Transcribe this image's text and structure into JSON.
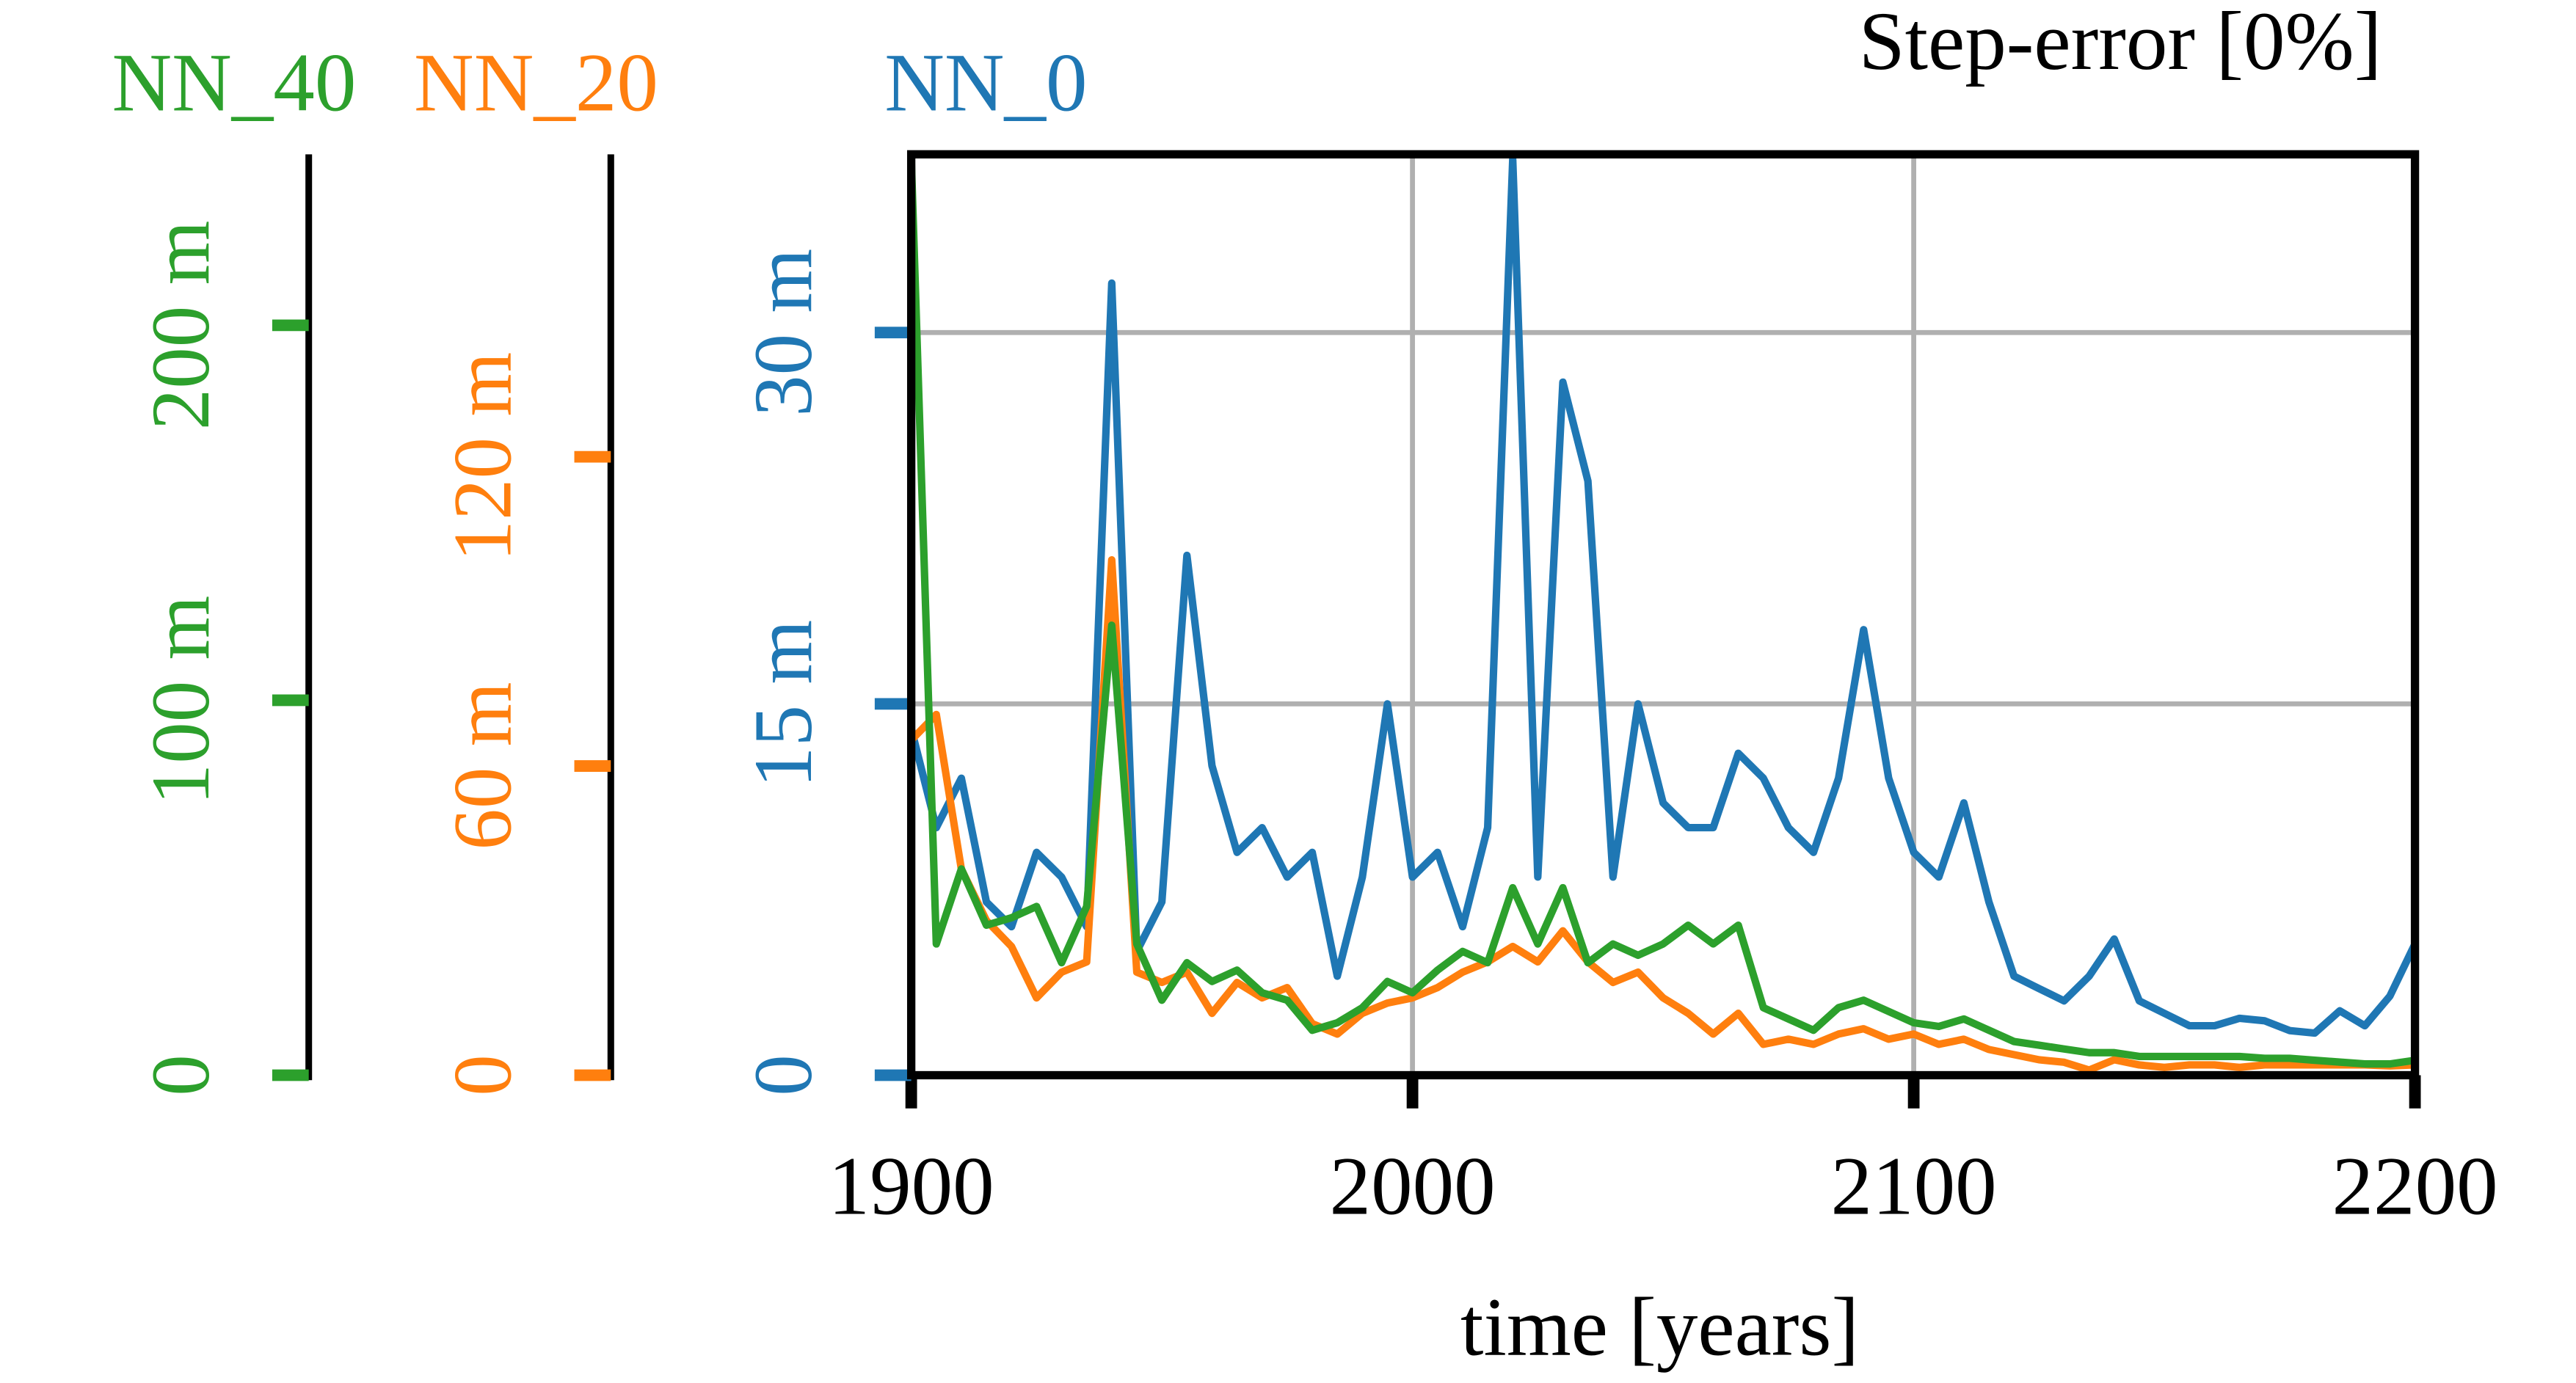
{
  "chart_data": {
    "type": "line",
    "title": "Step-error [0%]",
    "x_label": "time [years]",
    "x": [
      1900,
      1905,
      1910,
      1915,
      1920,
      1925,
      1930,
      1935,
      1940,
      1945,
      1950,
      1955,
      1960,
      1965,
      1970,
      1975,
      1980,
      1985,
      1990,
      1995,
      2000,
      2005,
      2010,
      2015,
      2020,
      2025,
      2030,
      2035,
      2040,
      2045,
      2050,
      2055,
      2060,
      2065,
      2070,
      2075,
      2080,
      2085,
      2090,
      2095,
      2100,
      2105,
      2110,
      2115,
      2120,
      2125,
      2130,
      2135,
      2140,
      2145,
      2150,
      2155,
      2160,
      2165,
      2170,
      2175,
      2180,
      2185,
      2190,
      2195,
      2200
    ],
    "xlim": [
      1900,
      2200
    ],
    "xticks": [
      1900,
      2000,
      2100,
      2200
    ],
    "grid": true,
    "series": [
      {
        "name": "NN_0",
        "color": "#1f77b4",
        "ylim": [
          0,
          37.2
        ],
        "yticks": [
          0,
          {
            "value": 15,
            "label": "15 m"
          },
          {
            "value": 30,
            "label": "30 m"
          }
        ],
        "values": [
          14,
          10,
          12,
          7,
          6,
          9,
          8,
          6,
          32,
          5,
          7,
          21,
          12.5,
          9,
          10,
          8,
          9,
          4,
          8,
          15,
          8,
          9,
          6,
          10,
          37,
          8,
          28,
          24,
          8,
          15,
          11,
          10,
          10,
          13,
          12,
          10,
          9,
          12,
          18,
          12,
          9,
          8,
          11,
          7,
          4,
          3.5,
          3,
          4,
          5.5,
          3,
          2.5,
          2,
          2,
          2.3,
          2.2,
          1.8,
          1.7,
          2.6,
          2,
          3.2,
          5.3
        ]
      },
      {
        "name": "NN_20",
        "color": "#ff7f0e",
        "ylim": [
          0,
          178.7
        ],
        "yticks": [
          0,
          {
            "value": 60,
            "label": "60 m"
          },
          {
            "value": 120,
            "label": "120 m"
          }
        ],
        "values": [
          65,
          70,
          40,
          30,
          25,
          15,
          20,
          22,
          100,
          20,
          18,
          20,
          12,
          18,
          15,
          17,
          10,
          8,
          12,
          14,
          15,
          17,
          20,
          22,
          25,
          22,
          28,
          22,
          18,
          20,
          15,
          12,
          8,
          12,
          6,
          7,
          6,
          8,
          9,
          7,
          8,
          6,
          7,
          5,
          4,
          3,
          2.5,
          1,
          3,
          2,
          1.5,
          2,
          2,
          1.5,
          2,
          2,
          2,
          2,
          2,
          1.8,
          2
        ]
      },
      {
        "name": "NN_40",
        "color": "#2ca02c",
        "ylim": [
          0,
          245.6
        ],
        "yticks": [
          0,
          {
            "value": 100,
            "label": "100 m"
          },
          {
            "value": 200,
            "label": "200 m"
          }
        ],
        "values": [
          245,
          35,
          55,
          40,
          42,
          45,
          30,
          45,
          120,
          35,
          20,
          30,
          25,
          28,
          22,
          20,
          12,
          14,
          18,
          25,
          22,
          28,
          33,
          30,
          50,
          35,
          50,
          30,
          35,
          32,
          35,
          40,
          35,
          40,
          18,
          15,
          12,
          18,
          20,
          17,
          14,
          13,
          15,
          12,
          9,
          8,
          7,
          6,
          6,
          5,
          5,
          5,
          5,
          5,
          4.5,
          4.5,
          4,
          3.5,
          3,
          3,
          4
        ]
      }
    ]
  }
}
